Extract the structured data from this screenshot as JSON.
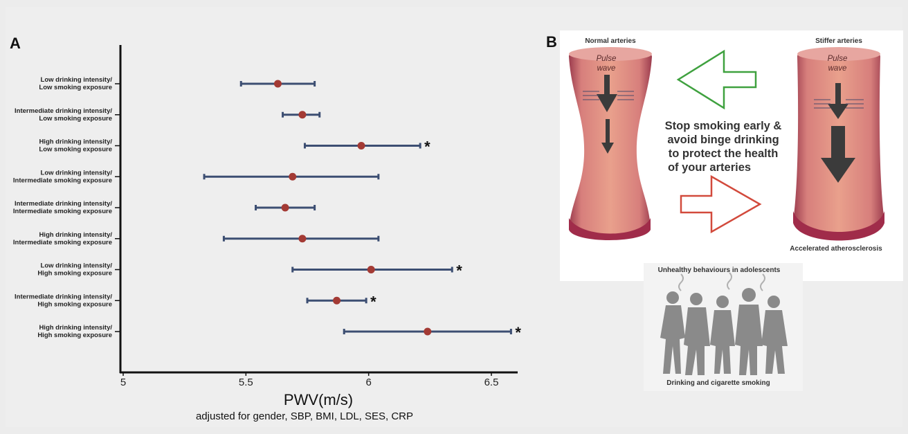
{
  "panels": {
    "a_letter": "A",
    "b_letter": "B"
  },
  "chart_data": {
    "type": "forest",
    "xlabel": "PWV(m/s)",
    "subtitle": "adjusted for gender, SBP, BMI, LDL, SES, CRP",
    "xlim": [
      4.98,
      6.62
    ],
    "xticks": [
      5,
      5.5,
      6,
      6.5
    ],
    "xtick_labels": [
      "5",
      "5.5",
      "6",
      "6.5"
    ],
    "colors": {
      "point": "#a33a34",
      "ci": "#3c4e72",
      "axis": "#111111"
    },
    "rows": [
      {
        "label1": "Low drinking intensity/",
        "label2": "Low smoking exposure",
        "est": 5.63,
        "lo": 5.48,
        "hi": 5.78,
        "sig": ""
      },
      {
        "label1": "Intermediate drinking intensity/",
        "label2": "Low smoking exposure",
        "est": 5.73,
        "lo": 5.65,
        "hi": 5.8,
        "sig": ""
      },
      {
        "label1": "High drinking intensity/",
        "label2": "Low smoking exposure",
        "est": 5.97,
        "lo": 5.74,
        "hi": 6.21,
        "sig": "*"
      },
      {
        "label1": "Low drinking intensity/",
        "label2": "Intermediate smoking exposure",
        "est": 5.69,
        "lo": 5.33,
        "hi": 6.04,
        "sig": ""
      },
      {
        "label1": "Intermediate drinking intensity/",
        "label2": "Intermediate smoking exposure",
        "est": 5.66,
        "lo": 5.54,
        "hi": 5.78,
        "sig": ""
      },
      {
        "label1": "High drinking intensity/",
        "label2": "Intermediate smoking exposure",
        "est": 5.73,
        "lo": 5.41,
        "hi": 6.04,
        "sig": ""
      },
      {
        "label1": "Low drinking intensity/",
        "label2": "High smoking exposure",
        "est": 6.01,
        "lo": 5.69,
        "hi": 6.34,
        "sig": "*"
      },
      {
        "label1": "Intermediate drinking intensity/",
        "label2": "High smoking exposure",
        "est": 5.87,
        "lo": 5.75,
        "hi": 5.99,
        "sig": "*"
      },
      {
        "label1": "High drinking intensity/",
        "label2": "High smoking exposure",
        "est": 6.24,
        "lo": 5.9,
        "hi": 6.58,
        "sig": "*"
      }
    ]
  },
  "illustration": {
    "normal_label": "Normal arteries",
    "stiffer_label": "Stiffer arteries",
    "pulse1": "Pulse",
    "pulse2": "wave",
    "message": [
      "Stop smoking early &",
      "avoid binge drinking",
      "to protect the health",
      "of your arteries"
    ],
    "athero_label": "Accelerated atherosclerosis",
    "unhealthy_label": "Unhealthy behaviours in adolescents",
    "drinking_label": "Drinking and cigarette smoking",
    "colors": {
      "artery": "#c86c6e",
      "artery_dark": "#8c2a48",
      "arrow_green": "#3fa13f",
      "arrow_red": "#d24a3c",
      "people": "#8a8a8a"
    }
  }
}
